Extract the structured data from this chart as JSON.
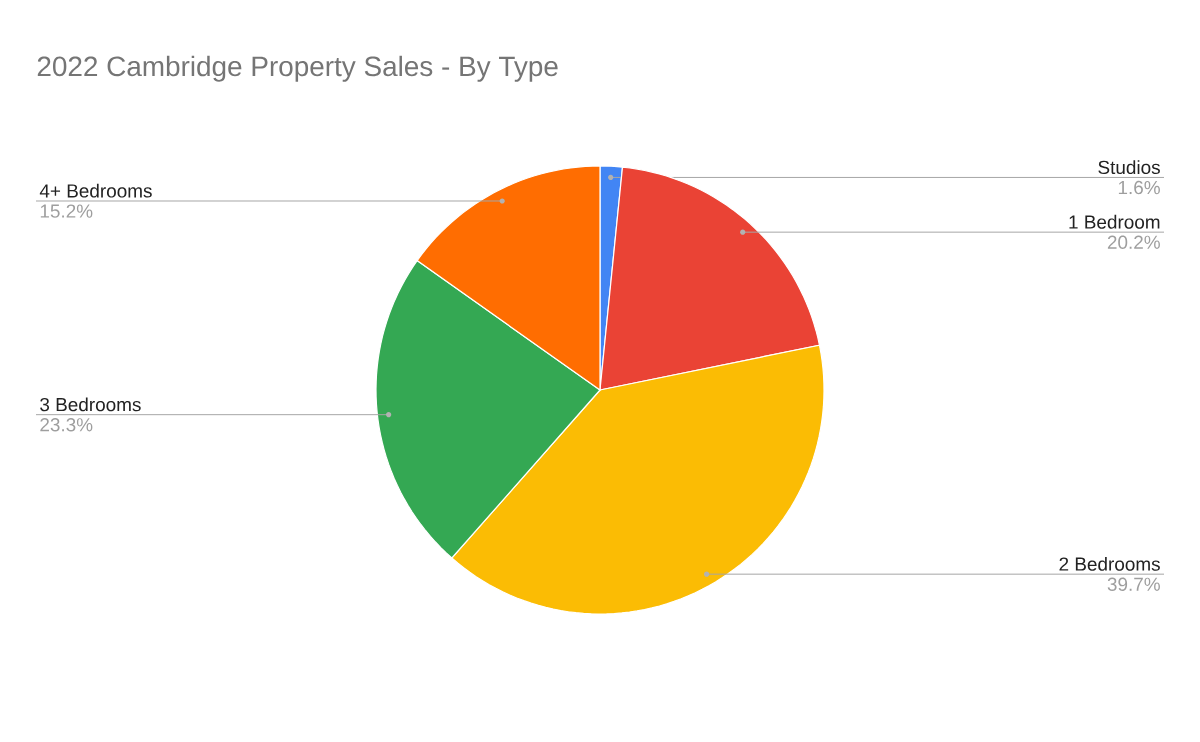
{
  "chart_data": {
    "type": "pie",
    "title": "2022 Cambridge Property Sales - By Type",
    "categories": [
      "Studios",
      "1 Bedroom",
      "2 Bedrooms",
      "3 Bedrooms",
      "4+ Bedrooms"
    ],
    "values": [
      1.6,
      20.2,
      39.7,
      23.3,
      15.2
    ],
    "colors": [
      "#4285f4",
      "#ea4335",
      "#fbbc04",
      "#34a853",
      "#ff6d01"
    ],
    "value_labels": [
      "1.6%",
      "20.2%",
      "39.7%",
      "23.3%",
      "15.2%"
    ]
  }
}
